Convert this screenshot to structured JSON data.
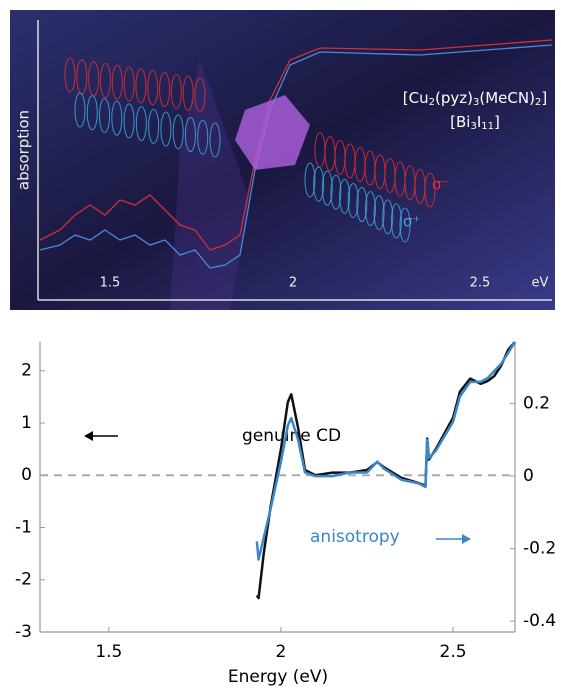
{
  "illustration": {
    "axis_label": "absorption",
    "ticks": [
      "1.5",
      "2",
      "2.5",
      "eV"
    ],
    "formula_1": [
      "[Cu",
      "2",
      "(pyz)",
      "3",
      "(MeCN)",
      "2",
      "]"
    ],
    "formula_2": [
      "[Bi",
      "3",
      "I",
      "11",
      "]"
    ],
    "sigma_minus": "σ⁻",
    "sigma_plus": "σ⁺"
  },
  "chart_data": {
    "type": "line",
    "xlabel": "Energy (eV)",
    "x": [
      1.93,
      1.935,
      1.95,
      1.97,
      2.0,
      2.02,
      2.03,
      2.05,
      2.07,
      2.1,
      2.15,
      2.2,
      2.25,
      2.28,
      2.3,
      2.35,
      2.4,
      2.42,
      2.425,
      2.43,
      2.45,
      2.5,
      2.52,
      2.55,
      2.58,
      2.6,
      2.62,
      2.64,
      2.66,
      2.68
    ],
    "series": [
      {
        "name": "genuine CD",
        "color": "#111111",
        "values": [
          -2.3,
          -2.35,
          -1.5,
          -0.6,
          0.5,
          1.4,
          1.55,
          0.9,
          0.1,
          0.0,
          0.05,
          0.05,
          0.1,
          0.25,
          0.15,
          -0.05,
          -0.15,
          -0.2,
          0.7,
          0.3,
          0.5,
          1.1,
          1.6,
          1.85,
          1.75,
          1.8,
          1.9,
          2.1,
          2.4,
          2.55
        ]
      },
      {
        "name": "anisotropy",
        "color": "#3a86c8",
        "axis": "y2",
        "values": [
          -0.18,
          -0.23,
          -0.17,
          -0.09,
          0.04,
          0.14,
          0.16,
          0.1,
          0.01,
          0.0,
          0.0,
          0.01,
          0.01,
          0.04,
          0.02,
          -0.01,
          -0.02,
          -0.03,
          0.1,
          0.05,
          0.07,
          0.15,
          0.22,
          0.26,
          0.26,
          0.27,
          0.29,
          0.31,
          0.34,
          0.37
        ]
      }
    ],
    "xlim": [
      1.3,
      2.68
    ],
    "xticks": [
      1.5,
      2,
      2.5
    ],
    "ylim": [
      -3,
      2.55
    ],
    "yticks": [
      -3,
      -2,
      -1,
      0,
      1,
      2
    ],
    "y2lim": [
      -0.43,
      0.37
    ],
    "y2ticks": [
      -0.4,
      -0.2,
      0,
      0.2
    ],
    "zero_line": true
  }
}
